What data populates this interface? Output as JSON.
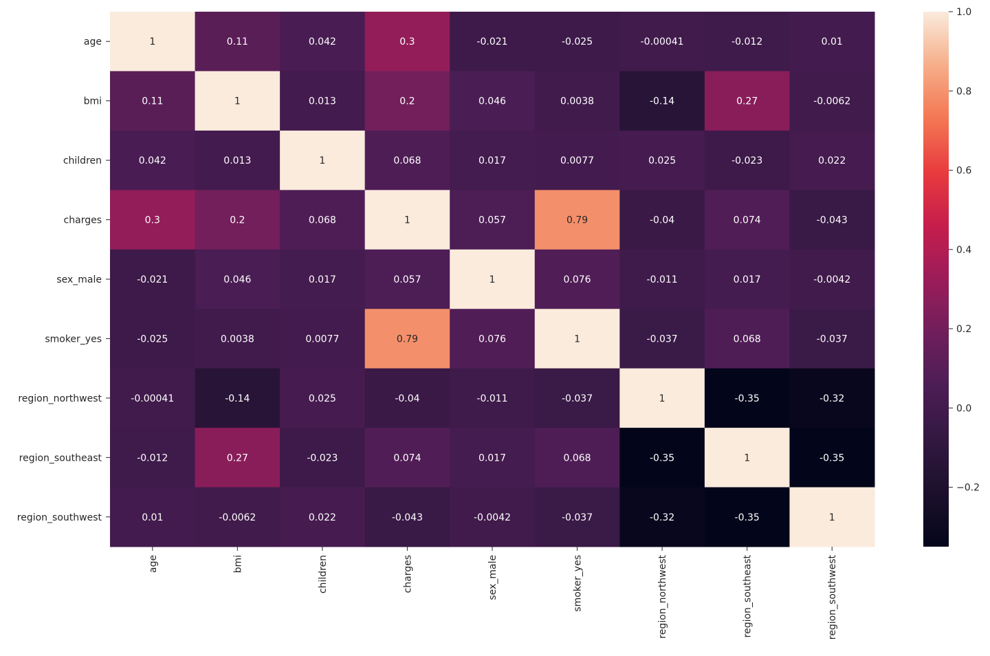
{
  "chart_data": {
    "type": "heatmap",
    "title": "",
    "xlabel": "",
    "ylabel": "",
    "rows": [
      "age",
      "bmi",
      "children",
      "charges",
      "sex_male",
      "smoker_yes",
      "region_northwest",
      "region_southeast",
      "region_southwest"
    ],
    "columns": [
      "age",
      "bmi",
      "children",
      "charges",
      "sex_male",
      "smoker_yes",
      "region_northwest",
      "region_southeast",
      "region_southwest"
    ],
    "values": [
      [
        1,
        0.11,
        0.042,
        0.3,
        -0.021,
        -0.025,
        -0.00041,
        -0.012,
        0.01
      ],
      [
        0.11,
        1,
        0.013,
        0.2,
        0.046,
        0.0038,
        -0.14,
        0.27,
        -0.0062
      ],
      [
        0.042,
        0.013,
        1,
        0.068,
        0.017,
        0.0077,
        0.025,
        -0.023,
        0.022
      ],
      [
        0.3,
        0.2,
        0.068,
        1,
        0.057,
        0.79,
        -0.04,
        0.074,
        -0.043
      ],
      [
        -0.021,
        0.046,
        0.017,
        0.057,
        1,
        0.076,
        -0.011,
        0.017,
        -0.0042
      ],
      [
        -0.025,
        0.0038,
        0.0077,
        0.79,
        0.076,
        1,
        -0.037,
        0.068,
        -0.037
      ],
      [
        -0.00041,
        -0.14,
        0.025,
        -0.04,
        -0.011,
        -0.037,
        1,
        -0.35,
        -0.32
      ],
      [
        -0.012,
        0.27,
        -0.023,
        0.074,
        0.017,
        0.068,
        -0.35,
        1,
        -0.35
      ],
      [
        0.01,
        -0.0062,
        0.022,
        -0.043,
        -0.0042,
        -0.037,
        -0.32,
        -0.35,
        1
      ]
    ],
    "annotations": [
      [
        "1",
        "0.11",
        "0.042",
        "0.3",
        "-0.021",
        "-0.025",
        "-0.00041",
        "-0.012",
        "0.01"
      ],
      [
        "0.11",
        "1",
        "0.013",
        "0.2",
        "0.046",
        "0.0038",
        "-0.14",
        "0.27",
        "-0.0062"
      ],
      [
        "0.042",
        "0.013",
        "1",
        "0.068",
        "0.017",
        "0.0077",
        "0.025",
        "-0.023",
        "0.022"
      ],
      [
        "0.3",
        "0.2",
        "0.068",
        "1",
        "0.057",
        "0.79",
        "-0.04",
        "0.074",
        "-0.043"
      ],
      [
        "-0.021",
        "0.046",
        "0.017",
        "0.057",
        "1",
        "0.076",
        "-0.011",
        "0.017",
        "-0.0042"
      ],
      [
        "-0.025",
        "0.0038",
        "0.0077",
        "0.79",
        "0.076",
        "1",
        "-0.037",
        "0.068",
        "-0.037"
      ],
      [
        "-0.00041",
        "-0.14",
        "0.025",
        "-0.04",
        "-0.011",
        "-0.037",
        "1",
        "-0.35",
        "-0.32"
      ],
      [
        "-0.012",
        "0.27",
        "-0.023",
        "0.074",
        "0.017",
        "0.068",
        "-0.35",
        "1",
        "-0.35"
      ],
      [
        "0.01",
        "-0.0062",
        "0.022",
        "-0.043",
        "-0.0042",
        "-0.037",
        "-0.32",
        "-0.35",
        "1"
      ]
    ],
    "colormap": "rocket",
    "colorbar": {
      "range": [
        -0.35,
        1.0
      ],
      "ticks": [
        1.0,
        0.8,
        0.6,
        0.4,
        0.2,
        0.0,
        -0.2
      ],
      "tick_labels": [
        "1.0",
        "0.8",
        "0.6",
        "0.4",
        "0.2",
        "0.0",
        "−0.2"
      ]
    }
  }
}
